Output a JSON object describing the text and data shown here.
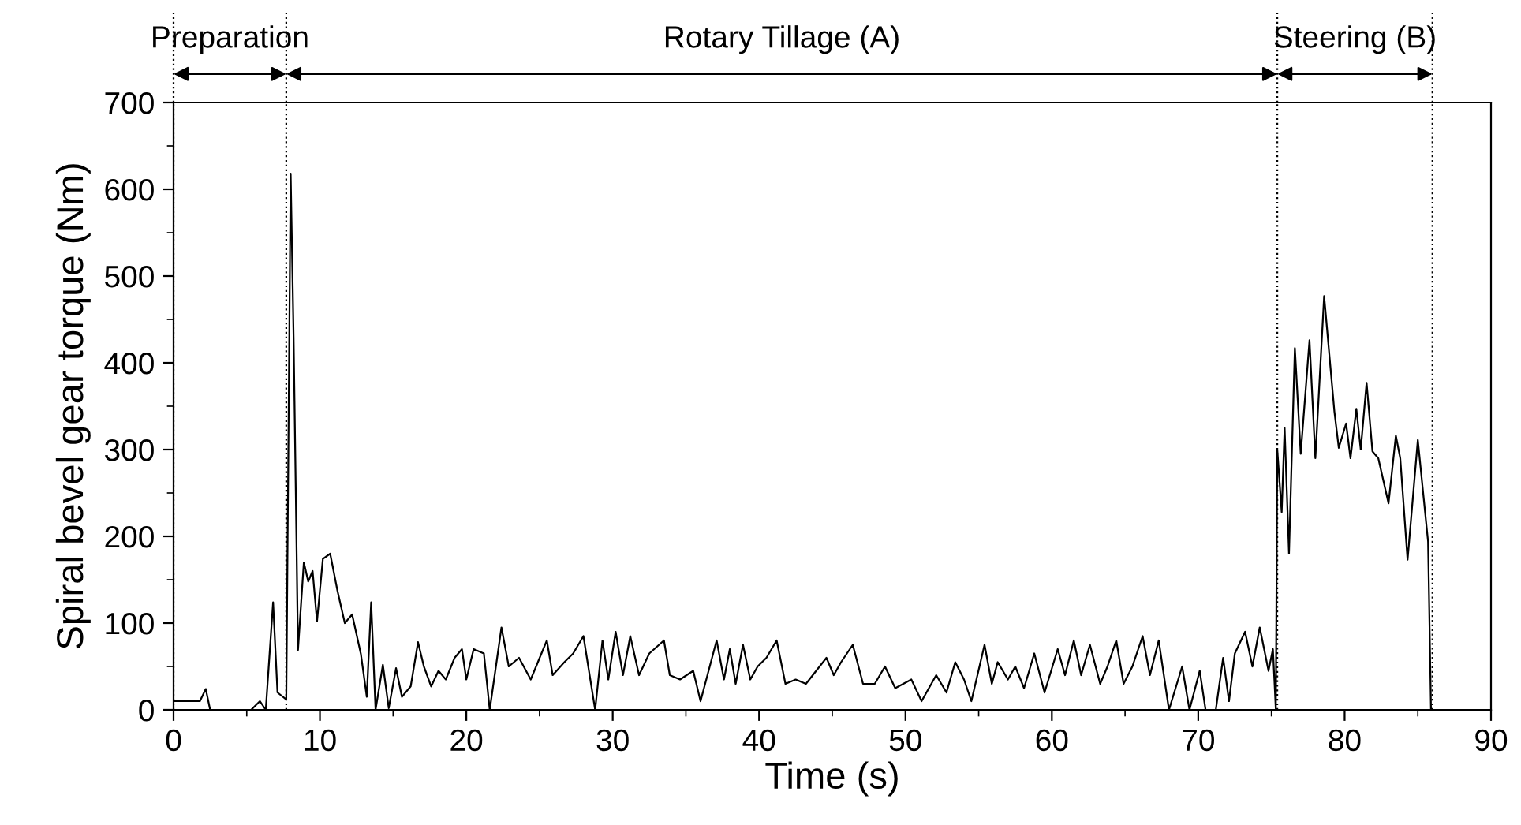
{
  "chart_data": {
    "type": "line",
    "xlabel": "Time (s)",
    "ylabel": "Spiral bevel gear torque (Nm)",
    "xlim": [
      0,
      90
    ],
    "xticks": [
      0,
      10,
      20,
      30,
      40,
      50,
      60,
      70,
      80,
      90
    ],
    "ylim": [
      0,
      700
    ],
    "yticks": [
      0,
      100,
      200,
      300,
      400,
      500,
      600,
      700
    ],
    "grid": false,
    "marker": "none",
    "line_style": "solid",
    "series": [
      {
        "color": "#000000",
        "x": [
          0,
          1.8,
          2.2,
          2.5,
          5.3,
          5.9,
          6.3,
          6.8,
          7.1,
          7.7,
          8.0,
          8.2,
          8.35,
          8.5,
          8.9,
          9.2,
          9.5,
          9.8,
          10.2,
          10.7,
          11.2,
          11.7,
          12.2,
          12.8,
          13.2,
          13.5,
          13.8,
          14.3,
          14.7,
          15.2,
          15.6,
          16.2,
          16.7,
          17.1,
          17.6,
          18.1,
          18.6,
          19.2,
          19.7,
          20.0,
          20.5,
          21.2,
          21.6,
          22.4,
          22.9,
          23.6,
          24.4,
          25.5,
          25.9,
          26.7,
          27.3,
          28.0,
          28.8,
          29.3,
          29.7,
          30.2,
          30.7,
          31.2,
          31.8,
          32.5,
          33.5,
          33.9,
          34.6,
          35.5,
          36.0,
          37.1,
          37.6,
          38.0,
          38.4,
          38.9,
          39.4,
          39.9,
          40.5,
          41.2,
          41.8,
          42.5,
          43.2,
          44.6,
          45.1,
          45.6,
          46.4,
          47.1,
          47.9,
          48.6,
          49.3,
          50.4,
          51.1,
          52.1,
          52.8,
          53.4,
          54.0,
          54.5,
          55.4,
          55.9,
          56.3,
          57.0,
          57.5,
          58.1,
          58.8,
          59.5,
          60.4,
          60.9,
          61.5,
          62.0,
          62.6,
          63.3,
          63.8,
          64.4,
          64.9,
          65.5,
          66.2,
          66.7,
          67.3,
          68.0,
          68.9,
          69.4,
          70.1,
          70.5,
          71.2,
          71.7,
          72.1,
          72.5,
          73.2,
          73.7,
          74.2,
          74.8,
          75.1,
          75.3,
          75.4,
          75.7,
          75.9,
          76.2,
          76.6,
          77.0,
          77.6,
          78.0,
          78.6,
          79.3,
          79.6,
          80.1,
          80.4,
          80.8,
          81.1,
          81.5,
          81.9,
          82.3,
          83.0,
          83.5,
          83.8,
          84.3,
          85.0,
          85.7,
          85.9
        ],
        "values": [
          10,
          10,
          24,
          0,
          0,
          10,
          0,
          124,
          20,
          12,
          618,
          430,
          252,
          69,
          170,
          148,
          160,
          102,
          174,
          180,
          137,
          100,
          110,
          64,
          15,
          124,
          0,
          52,
          2,
          48,
          15,
          27,
          78,
          50,
          27,
          45,
          35,
          60,
          70,
          35,
          70,
          65,
          0,
          95,
          50,
          60,
          35,
          80,
          40,
          55,
          65,
          85,
          0,
          80,
          35,
          90,
          40,
          85,
          40,
          65,
          80,
          40,
          35,
          45,
          10,
          80,
          35,
          70,
          30,
          75,
          35,
          50,
          60,
          80,
          30,
          35,
          30,
          60,
          40,
          55,
          75,
          30,
          30,
          50,
          25,
          35,
          10,
          40,
          20,
          55,
          35,
          10,
          75,
          30,
          55,
          35,
          50,
          25,
          65,
          20,
          70,
          40,
          80,
          40,
          75,
          30,
          50,
          80,
          30,
          50,
          85,
          40,
          80,
          0,
          50,
          0,
          45,
          0,
          0,
          60,
          10,
          65,
          90,
          50,
          95,
          45,
          70,
          0,
          300,
          228,
          325,
          180,
          417,
          295,
          426,
          290,
          477,
          344,
          302,
          330,
          290,
          347,
          300,
          377,
          298,
          290,
          238,
          316,
          290,
          173,
          311,
          194,
          0
        ]
      }
    ],
    "ref_lines": [
      {
        "axis": "x",
        "value": 0,
        "line_style": "dotted",
        "color": "#000000"
      },
      {
        "axis": "x",
        "value": 7.7,
        "line_style": "dotted",
        "color": "#000000"
      },
      {
        "axis": "x",
        "value": 75.4,
        "line_style": "dotted",
        "color": "#000000"
      },
      {
        "axis": "x",
        "value": 86,
        "line_style": "dotted",
        "color": "#000000"
      }
    ],
    "annotations": [
      "Preparation",
      "Rotary Tillage (A)",
      "Steering (B)"
    ]
  }
}
